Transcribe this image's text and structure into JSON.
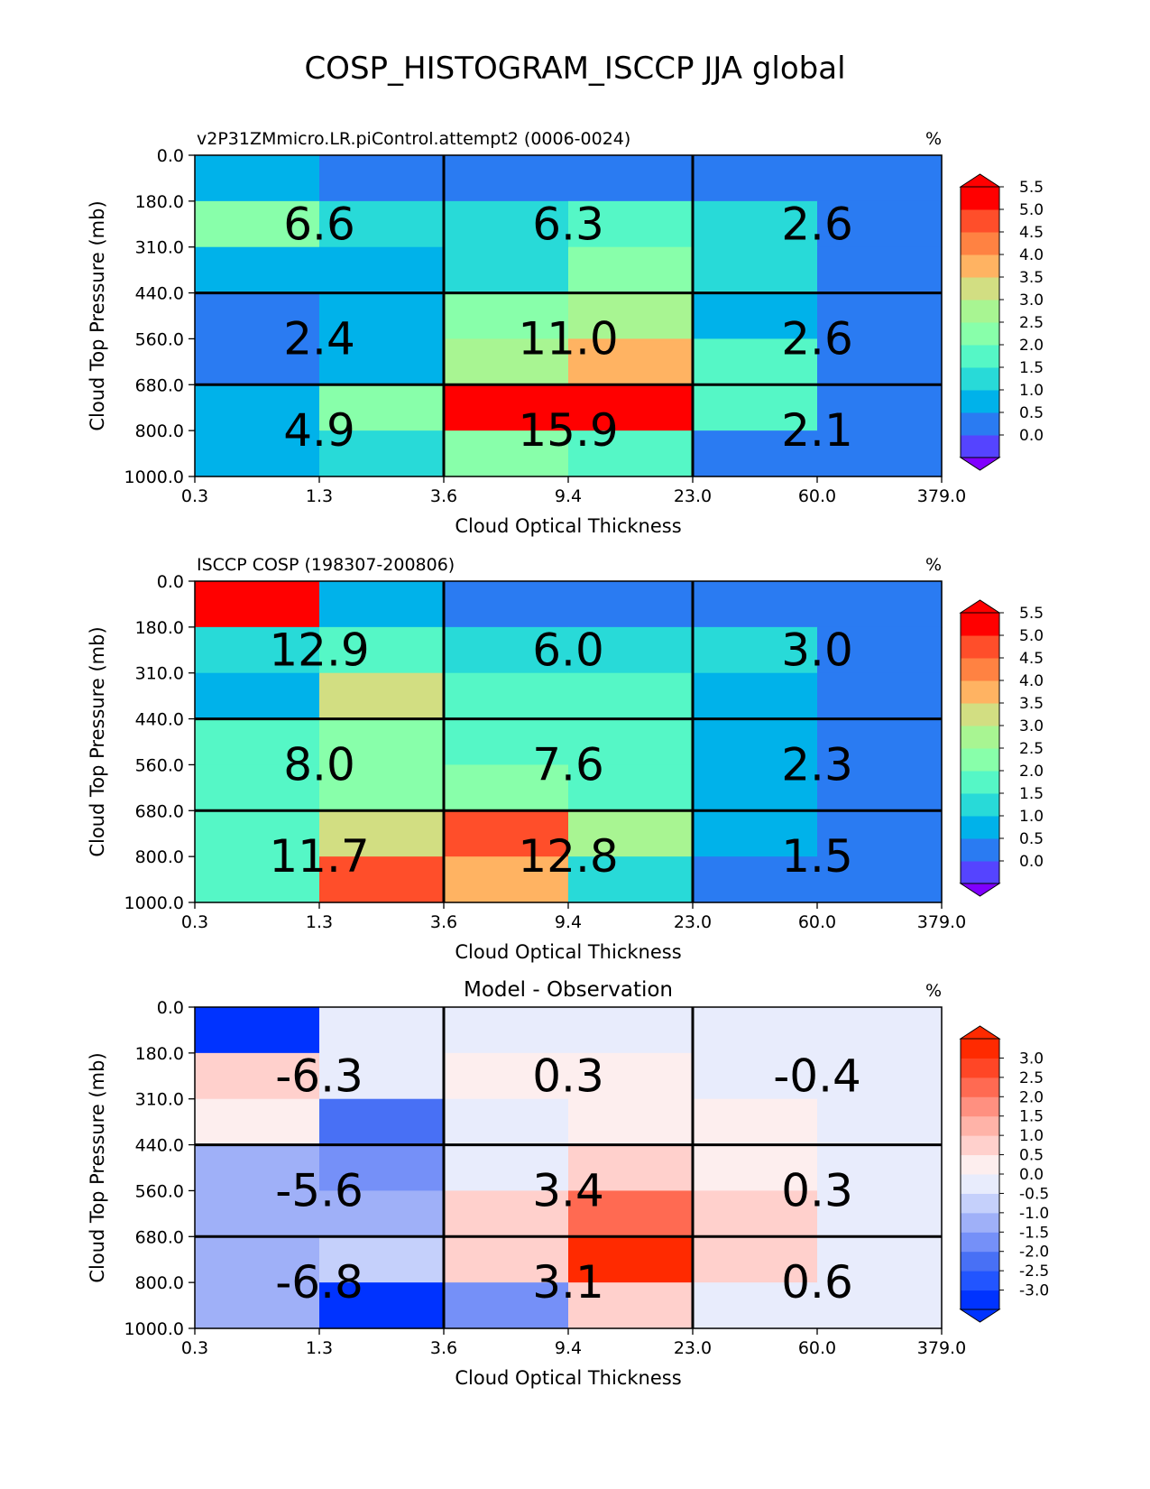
{
  "figure": {
    "title": "COSP_HISTOGRAM_ISCCP JJA global"
  },
  "chart_data": [
    {
      "type": "heatmap",
      "title": "",
      "left_label": "v2P31ZMmicro.LR.piControl.attempt2 (0006-0024)",
      "units": "%",
      "xlabel": "Cloud Optical Thickness",
      "ylabel": "Cloud Top Pressure (mb)",
      "xticks": [
        "0.3",
        "1.3",
        "3.6",
        "9.4",
        "23.0",
        "60.0",
        "379.0"
      ],
      "yticks": [
        "0.0",
        "180.0",
        "310.0",
        "440.0",
        "560.0",
        "680.0",
        "800.0",
        "1000.0"
      ],
      "cells_top_to_bottom": [
        [
          0.8,
          0.3,
          0.3,
          0.3,
          0.3,
          0.3
        ],
        [
          2.2,
          1.3,
          1.3,
          1.9,
          1.3,
          0.3
        ],
        [
          0.8,
          0.8,
          1.3,
          2.3,
          1.3,
          0.3
        ],
        [
          0.3,
          0.8,
          2.0,
          2.9,
          0.8,
          0.3
        ],
        [
          0.3,
          0.8,
          2.9,
          3.8,
          1.8,
          0.3
        ],
        [
          0.8,
          2.2,
          6.0,
          6.0,
          1.8,
          0.3
        ],
        [
          0.8,
          1.3,
          2.2,
          1.8,
          0.3,
          0.3
        ]
      ],
      "block_values": [
        [
          "6.6",
          "6.3",
          "2.6"
        ],
        [
          "2.4",
          "11.0",
          "2.6"
        ],
        [
          "4.9",
          "15.9",
          "2.1"
        ]
      ],
      "colorbar": {
        "ticks": [
          "0.0",
          "0.5",
          "1.0",
          "1.5",
          "2.0",
          "2.5",
          "3.0",
          "3.5",
          "4.0",
          "4.5",
          "5.0",
          "5.5"
        ],
        "colors": [
          "#5544ff",
          "#2a7bf2",
          "#00b2ea",
          "#28dad8",
          "#55f7c6",
          "#88ffaa",
          "#a8f592",
          "#d2de82",
          "#ffb362",
          "#ff8242",
          "#ff4e2a",
          "#ff0000"
        ],
        "under_color": "#8000ff",
        "over_color": "#ff0000"
      }
    },
    {
      "type": "heatmap",
      "title": "",
      "left_label": "ISCCP COSP (198307-200806)",
      "units": "%",
      "xlabel": "Cloud Optical Thickness",
      "ylabel": "Cloud Top Pressure (mb)",
      "xticks": [
        "0.3",
        "1.3",
        "3.6",
        "9.4",
        "23.0",
        "60.0",
        "379.0"
      ],
      "yticks": [
        "0.0",
        "180.0",
        "310.0",
        "440.0",
        "560.0",
        "680.0",
        "800.0",
        "1000.0"
      ],
      "cells_top_to_bottom": [
        [
          5.3,
          0.8,
          0.3,
          0.3,
          0.3,
          0.3
        ],
        [
          1.3,
          1.8,
          1.3,
          1.3,
          1.3,
          0.3
        ],
        [
          0.8,
          3.3,
          1.8,
          1.8,
          0.8,
          0.3
        ],
        [
          1.8,
          2.2,
          1.8,
          1.8,
          0.8,
          0.3
        ],
        [
          1.8,
          2.2,
          2.2,
          1.8,
          0.8,
          0.3
        ],
        [
          1.8,
          3.0,
          4.8,
          2.8,
          0.8,
          0.3
        ],
        [
          1.8,
          4.8,
          3.8,
          1.3,
          0.3,
          0.3
        ]
      ],
      "block_values": [
        [
          "12.9",
          "6.0",
          "3.0"
        ],
        [
          "8.0",
          "7.6",
          "2.3"
        ],
        [
          "11.7",
          "12.8",
          "1.5"
        ]
      ],
      "colorbar": {
        "ticks": [
          "0.0",
          "0.5",
          "1.0",
          "1.5",
          "2.0",
          "2.5",
          "3.0",
          "3.5",
          "4.0",
          "4.5",
          "5.0",
          "5.5"
        ],
        "colors": [
          "#5544ff",
          "#2a7bf2",
          "#00b2ea",
          "#28dad8",
          "#55f7c6",
          "#88ffaa",
          "#a8f592",
          "#d2de82",
          "#ffb362",
          "#ff8242",
          "#ff4e2a",
          "#ff0000"
        ],
        "under_color": "#8000ff",
        "over_color": "#ff0000"
      }
    },
    {
      "type": "heatmap",
      "title": "Model - Observation",
      "left_label": "",
      "units": "%",
      "xlabel": "Cloud Optical Thickness",
      "ylabel": "Cloud Top Pressure (mb)",
      "xticks": [
        "0.3",
        "1.3",
        "3.6",
        "9.4",
        "23.0",
        "60.0",
        "379.0"
      ],
      "yticks": [
        "0.0",
        "180.0",
        "310.0",
        "440.0",
        "560.0",
        "680.0",
        "800.0",
        "1000.0"
      ],
      "cells_top_to_bottom": [
        [
          -4.5,
          -0.2,
          -0.2,
          -0.2,
          -0.2,
          -0.2
        ],
        [
          0.8,
          -0.2,
          0.2,
          0.2,
          -0.2,
          -0.2
        ],
        [
          0.2,
          -2.2,
          -0.2,
          0.2,
          0.2,
          -0.2
        ],
        [
          -1.2,
          -1.8,
          -0.2,
          0.8,
          0.2,
          -0.2
        ],
        [
          -1.2,
          -1.2,
          0.8,
          2.2,
          0.8,
          -0.2
        ],
        [
          -1.2,
          -0.7,
          0.8,
          3.5,
          0.8,
          -0.2
        ],
        [
          -1.2,
          -4.5,
          -1.7,
          0.8,
          -0.2,
          -0.2
        ]
      ],
      "block_values": [
        [
          "-6.3",
          "0.3",
          "-0.4"
        ],
        [
          "-5.6",
          "3.4",
          "0.3"
        ],
        [
          "-6.8",
          "3.1",
          "0.6"
        ]
      ],
      "colorbar": {
        "ticks": [
          "-3.0",
          "-2.5",
          "-2.0",
          "-1.5",
          "-1.0",
          "-0.5",
          "0.0",
          "0.5",
          "1.0",
          "1.5",
          "2.0",
          "2.5",
          "3.0"
        ],
        "colors": [
          "#0033ff",
          "#2255ff",
          "#4870f5",
          "#7590f8",
          "#9fb0f8",
          "#c5d0fb",
          "#e8ecfc",
          "#fdeeee",
          "#ffd0cc",
          "#ffb3a8",
          "#ff9080",
          "#ff6a52",
          "#ff4626",
          "#ff2a00"
        ],
        "under_color": "#0033ff",
        "over_color": "#ff2a00"
      }
    }
  ]
}
